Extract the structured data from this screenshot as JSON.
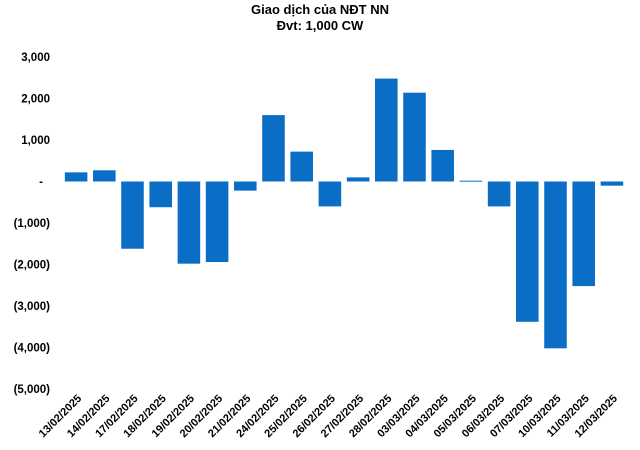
{
  "chart_data": {
    "type": "bar",
    "title": "Giao dịch của NĐT NN",
    "subtitle": "Đvt: 1,000 CW",
    "xlabel": "",
    "ylabel": "",
    "ylim": [
      -5000,
      3000
    ],
    "yticks": [
      3000,
      2000,
      1000,
      0,
      -1000,
      -2000,
      -3000,
      -4000,
      -5000
    ],
    "ytick_labels": [
      "3,000",
      "2,000",
      "1,000",
      "-",
      "(1,000)",
      "(2,000)",
      "(3,000)",
      "(4,000)",
      "(5,000)"
    ],
    "grid": false,
    "legend": "none",
    "bar_color": "#0A6DC6",
    "categories": [
      "13/02/2025",
      "14/02/2025",
      "17/02/2025",
      "18/02/2025",
      "19/02/2025",
      "20/02/2025",
      "21/02/2025",
      "24/02/2025",
      "25/02/2025",
      "26/02/2025",
      "27/02/2025",
      "28/02/2025",
      "03/03/2025",
      "04/03/2025",
      "05/03/2025",
      "06/03/2025",
      "07/03/2025",
      "10/03/2025",
      "11/03/2025",
      "12/03/2025"
    ],
    "values": [
      220,
      270,
      -1620,
      -620,
      -1980,
      -1940,
      -220,
      1600,
      720,
      -600,
      100,
      2480,
      2140,
      760,
      20,
      -600,
      -3380,
      -4020,
      -2520,
      -100
    ]
  }
}
